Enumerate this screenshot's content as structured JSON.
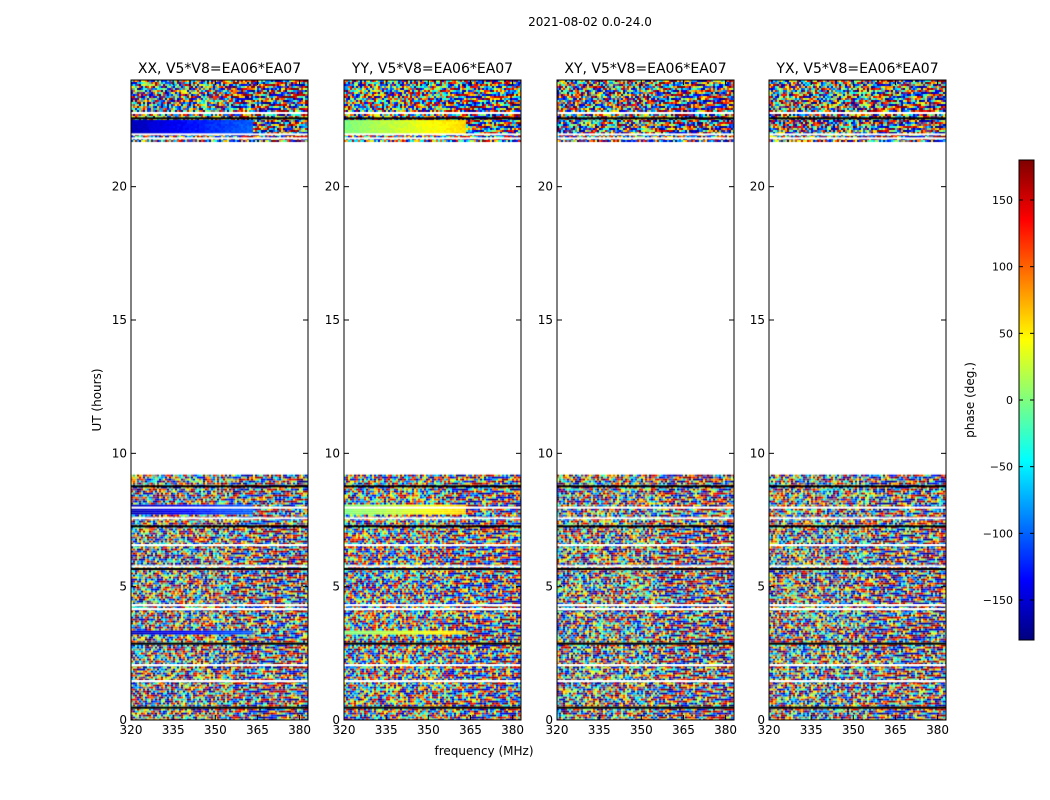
{
  "chart_data": {
    "type": "heatmap",
    "title": "2021-08-02 0.0-24.0",
    "xlabel": "frequency (MHz)",
    "ylabel": "UT (hours)",
    "xlim": [
      320,
      383
    ],
    "ylim": [
      0,
      24
    ],
    "xticks": [
      320,
      335,
      350,
      365,
      380
    ],
    "yticks": [
      0,
      5,
      10,
      15,
      20
    ],
    "colorbar": {
      "label": "phase (deg.)",
      "range": [
        -180,
        180
      ],
      "ticks": [
        150,
        100,
        50,
        0,
        -50,
        -100,
        -150
      ],
      "tick_labels": [
        "150",
        "100",
        "50",
        "0",
        "−50",
        "−100",
        "−150"
      ],
      "colormap": [
        "#00007f",
        "#0000ff",
        "#007fff",
        "#00ffff",
        "#7fff7f",
        "#ffff00",
        "#ff7f00",
        "#ff0000",
        "#7f0000"
      ]
    },
    "data_blocks_hours": [
      [
        0,
        9.2
      ],
      [
        21.7,
        24
      ]
    ],
    "gap_lines_hours": [
      0.5,
      1.5,
      2.1,
      2.9,
      4.2,
      4.35,
      5.7,
      5.8,
      6.6,
      7.3,
      7.6,
      8.0,
      8.8,
      21.85,
      22.0,
      22.6,
      22.8
    ],
    "panels": [
      {
        "title": "XX, V5*V8=EA06*EA07",
        "coherent_phase": -130,
        "coherent_end_mhz": 363
      },
      {
        "title": "YY, V5*V8=EA06*EA07",
        "coherent_phase": 30,
        "coherent_end_mhz": 363
      },
      {
        "title": "XY, V5*V8=EA06*EA07",
        "coherent_phase": null,
        "coherent_end_mhz": null
      },
      {
        "title": "YX, V5*V8=EA06*EA07",
        "coherent_phase": null,
        "coherent_end_mhz": null
      }
    ],
    "coherent_bands_hours": [
      [
        3.2,
        3.4
      ],
      [
        7.7,
        8.1
      ],
      [
        22.0,
        22.5
      ]
    ]
  }
}
